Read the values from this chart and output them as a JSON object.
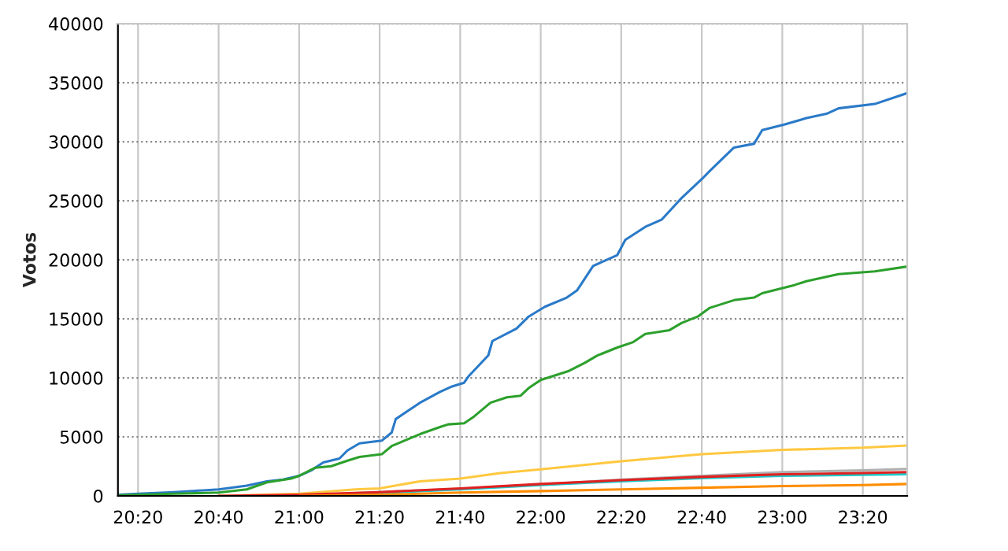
{
  "chart_data": {
    "type": "line",
    "ylabel": "Votos",
    "xlim": [
      20.25,
      23.517
    ],
    "ylim": [
      0,
      40000
    ],
    "xticks": [
      {
        "value": 20.3333,
        "label": "20:20"
      },
      {
        "value": 20.6667,
        "label": "20:40"
      },
      {
        "value": 21.0,
        "label": "21:00"
      },
      {
        "value": 21.3333,
        "label": "21:20"
      },
      {
        "value": 21.6667,
        "label": "21:40"
      },
      {
        "value": 22.0,
        "label": "22:00"
      },
      {
        "value": 22.3333,
        "label": "22:20"
      },
      {
        "value": 22.6667,
        "label": "22:40"
      },
      {
        "value": 23.0,
        "label": "23:00"
      },
      {
        "value": 23.3333,
        "label": "23:20"
      }
    ],
    "yticks": [
      0,
      5000,
      10000,
      15000,
      20000,
      25000,
      30000,
      35000,
      40000
    ],
    "grid": true,
    "marker": "none",
    "line_style": "solid",
    "series": [
      {
        "color": "#2a7ac8",
        "x": [
          20.25,
          20.333,
          20.483,
          20.667,
          20.783,
          20.867,
          20.933,
          21.0,
          21.05,
          21.1,
          21.167,
          21.2,
          21.25,
          21.342,
          21.383,
          21.4,
          21.5,
          21.583,
          21.633,
          21.683,
          21.7,
          21.783,
          21.8,
          21.9,
          21.95,
          22.017,
          22.108,
          22.15,
          22.217,
          22.317,
          22.35,
          22.433,
          22.5,
          22.583,
          22.667,
          22.7,
          22.8,
          22.883,
          22.917,
          23.008,
          23.1,
          23.183,
          23.233,
          23.383,
          23.517
        ],
        "values": [
          90,
          180,
          320,
          550,
          870,
          1240,
          1380,
          1700,
          2160,
          2840,
          3170,
          3850,
          4450,
          4680,
          5370,
          6510,
          7890,
          8810,
          9270,
          9590,
          10100,
          11900,
          13120,
          14180,
          15190,
          16020,
          16800,
          17400,
          19480,
          20400,
          21690,
          22790,
          23390,
          25230,
          26840,
          27530,
          29510,
          29830,
          30990,
          31450,
          32000,
          32370,
          32830,
          33200,
          34120
        ]
      },
      {
        "color": "#2ca02c",
        "x": [
          20.25,
          20.483,
          20.667,
          20.783,
          20.867,
          20.967,
          21.0,
          21.067,
          21.133,
          21.2,
          21.25,
          21.342,
          21.383,
          21.5,
          21.583,
          21.617,
          21.683,
          21.725,
          21.792,
          21.86,
          21.917,
          21.95,
          22.0,
          22.117,
          22.183,
          22.233,
          22.317,
          22.383,
          22.433,
          22.533,
          22.583,
          22.65,
          22.7,
          22.8,
          22.883,
          22.917,
          23.05,
          23.1,
          23.233,
          23.383,
          23.517
        ],
        "values": [
          50,
          180,
          280,
          550,
          1150,
          1470,
          1700,
          2390,
          2520,
          2980,
          3300,
          3530,
          4220,
          5230,
          5830,
          6060,
          6150,
          6740,
          7890,
          8350,
          8490,
          9130,
          9820,
          10590,
          11280,
          11880,
          12570,
          13030,
          13720,
          14040,
          14640,
          15190,
          15930,
          16580,
          16800,
          17170,
          17860,
          18190,
          18780,
          19020,
          19430
        ]
      },
      {
        "color": "#ffc840",
        "x": [
          20.667,
          21.0,
          21.233,
          21.333,
          21.5,
          21.667,
          21.833,
          22.0,
          22.333,
          22.667,
          23.0,
          23.333,
          23.517
        ],
        "values": [
          0,
          180,
          550,
          640,
          1240,
          1470,
          1930,
          2250,
          2940,
          3530,
          3900,
          4080,
          4270
        ]
      },
      {
        "color": "#b0b0b0",
        "x": [
          21.0,
          21.667,
          22.0,
          22.333,
          22.667,
          23.0,
          23.333,
          23.517
        ],
        "values": [
          50,
          600,
          970,
          1380,
          1700,
          2020,
          2160,
          2290
        ]
      },
      {
        "color": "#20c8c8",
        "x": [
          21.0,
          21.333,
          21.667,
          22.0,
          22.333,
          22.667,
          23.0,
          23.333,
          23.517
        ],
        "values": [
          50,
          230,
          550,
          920,
          1240,
          1510,
          1700,
          1790,
          1830
        ]
      },
      {
        "color": "#e02020",
        "x": [
          20.667,
          21.0,
          21.333,
          21.667,
          22.0,
          22.333,
          22.667,
          23.0,
          23.333,
          23.517
        ],
        "values": [
          0,
          90,
          320,
          640,
          1010,
          1330,
          1610,
          1830,
          1930,
          2020
        ]
      },
      {
        "color": "#ff8c00",
        "x": [
          21.0,
          21.333,
          21.667,
          22.0,
          22.333,
          22.667,
          23.0,
          23.333,
          23.517
        ],
        "values": [
          0,
          90,
          280,
          410,
          550,
          690,
          830,
          920,
          1010
        ]
      }
    ]
  }
}
